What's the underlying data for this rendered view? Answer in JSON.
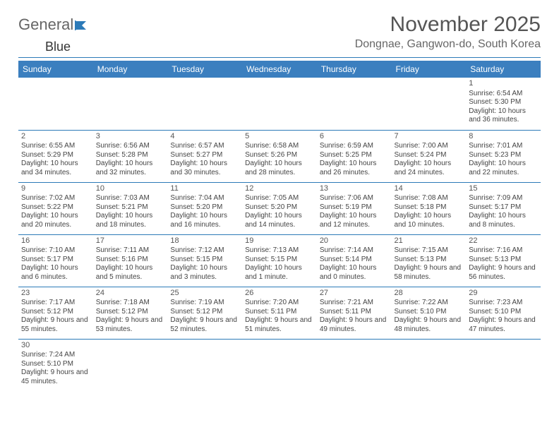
{
  "logo": {
    "text1": "General",
    "text2": "Blue"
  },
  "title": "November 2025",
  "subtitle": "Dongnae, Gangwon-do, South Korea",
  "colors": {
    "accent": "#3b7fbf",
    "rule": "#2c7ab8",
    "text": "#444"
  },
  "day_headers": [
    "Sunday",
    "Monday",
    "Tuesday",
    "Wednesday",
    "Thursday",
    "Friday",
    "Saturday"
  ],
  "weeks": [
    [
      null,
      null,
      null,
      null,
      null,
      null,
      {
        "n": "1",
        "sr": "6:54 AM",
        "ss": "5:30 PM",
        "dl": "10 hours and 36 minutes."
      }
    ],
    [
      {
        "n": "2",
        "sr": "6:55 AM",
        "ss": "5:29 PM",
        "dl": "10 hours and 34 minutes."
      },
      {
        "n": "3",
        "sr": "6:56 AM",
        "ss": "5:28 PM",
        "dl": "10 hours and 32 minutes."
      },
      {
        "n": "4",
        "sr": "6:57 AM",
        "ss": "5:27 PM",
        "dl": "10 hours and 30 minutes."
      },
      {
        "n": "5",
        "sr": "6:58 AM",
        "ss": "5:26 PM",
        "dl": "10 hours and 28 minutes."
      },
      {
        "n": "6",
        "sr": "6:59 AM",
        "ss": "5:25 PM",
        "dl": "10 hours and 26 minutes."
      },
      {
        "n": "7",
        "sr": "7:00 AM",
        "ss": "5:24 PM",
        "dl": "10 hours and 24 minutes."
      },
      {
        "n": "8",
        "sr": "7:01 AM",
        "ss": "5:23 PM",
        "dl": "10 hours and 22 minutes."
      }
    ],
    [
      {
        "n": "9",
        "sr": "7:02 AM",
        "ss": "5:22 PM",
        "dl": "10 hours and 20 minutes."
      },
      {
        "n": "10",
        "sr": "7:03 AM",
        "ss": "5:21 PM",
        "dl": "10 hours and 18 minutes."
      },
      {
        "n": "11",
        "sr": "7:04 AM",
        "ss": "5:20 PM",
        "dl": "10 hours and 16 minutes."
      },
      {
        "n": "12",
        "sr": "7:05 AM",
        "ss": "5:20 PM",
        "dl": "10 hours and 14 minutes."
      },
      {
        "n": "13",
        "sr": "7:06 AM",
        "ss": "5:19 PM",
        "dl": "10 hours and 12 minutes."
      },
      {
        "n": "14",
        "sr": "7:08 AM",
        "ss": "5:18 PM",
        "dl": "10 hours and 10 minutes."
      },
      {
        "n": "15",
        "sr": "7:09 AM",
        "ss": "5:17 PM",
        "dl": "10 hours and 8 minutes."
      }
    ],
    [
      {
        "n": "16",
        "sr": "7:10 AM",
        "ss": "5:17 PM",
        "dl": "10 hours and 6 minutes."
      },
      {
        "n": "17",
        "sr": "7:11 AM",
        "ss": "5:16 PM",
        "dl": "10 hours and 5 minutes."
      },
      {
        "n": "18",
        "sr": "7:12 AM",
        "ss": "5:15 PM",
        "dl": "10 hours and 3 minutes."
      },
      {
        "n": "19",
        "sr": "7:13 AM",
        "ss": "5:15 PM",
        "dl": "10 hours and 1 minute."
      },
      {
        "n": "20",
        "sr": "7:14 AM",
        "ss": "5:14 PM",
        "dl": "10 hours and 0 minutes."
      },
      {
        "n": "21",
        "sr": "7:15 AM",
        "ss": "5:13 PM",
        "dl": "9 hours and 58 minutes."
      },
      {
        "n": "22",
        "sr": "7:16 AM",
        "ss": "5:13 PM",
        "dl": "9 hours and 56 minutes."
      }
    ],
    [
      {
        "n": "23",
        "sr": "7:17 AM",
        "ss": "5:12 PM",
        "dl": "9 hours and 55 minutes."
      },
      {
        "n": "24",
        "sr": "7:18 AM",
        "ss": "5:12 PM",
        "dl": "9 hours and 53 minutes."
      },
      {
        "n": "25",
        "sr": "7:19 AM",
        "ss": "5:12 PM",
        "dl": "9 hours and 52 minutes."
      },
      {
        "n": "26",
        "sr": "7:20 AM",
        "ss": "5:11 PM",
        "dl": "9 hours and 51 minutes."
      },
      {
        "n": "27",
        "sr": "7:21 AM",
        "ss": "5:11 PM",
        "dl": "9 hours and 49 minutes."
      },
      {
        "n": "28",
        "sr": "7:22 AM",
        "ss": "5:10 PM",
        "dl": "9 hours and 48 minutes."
      },
      {
        "n": "29",
        "sr": "7:23 AM",
        "ss": "5:10 PM",
        "dl": "9 hours and 47 minutes."
      }
    ],
    [
      {
        "n": "30",
        "sr": "7:24 AM",
        "ss": "5:10 PM",
        "dl": "9 hours and 45 minutes."
      },
      null,
      null,
      null,
      null,
      null,
      null
    ]
  ],
  "labels": {
    "sunrise": "Sunrise: ",
    "sunset": "Sunset: ",
    "daylight": "Daylight: "
  }
}
